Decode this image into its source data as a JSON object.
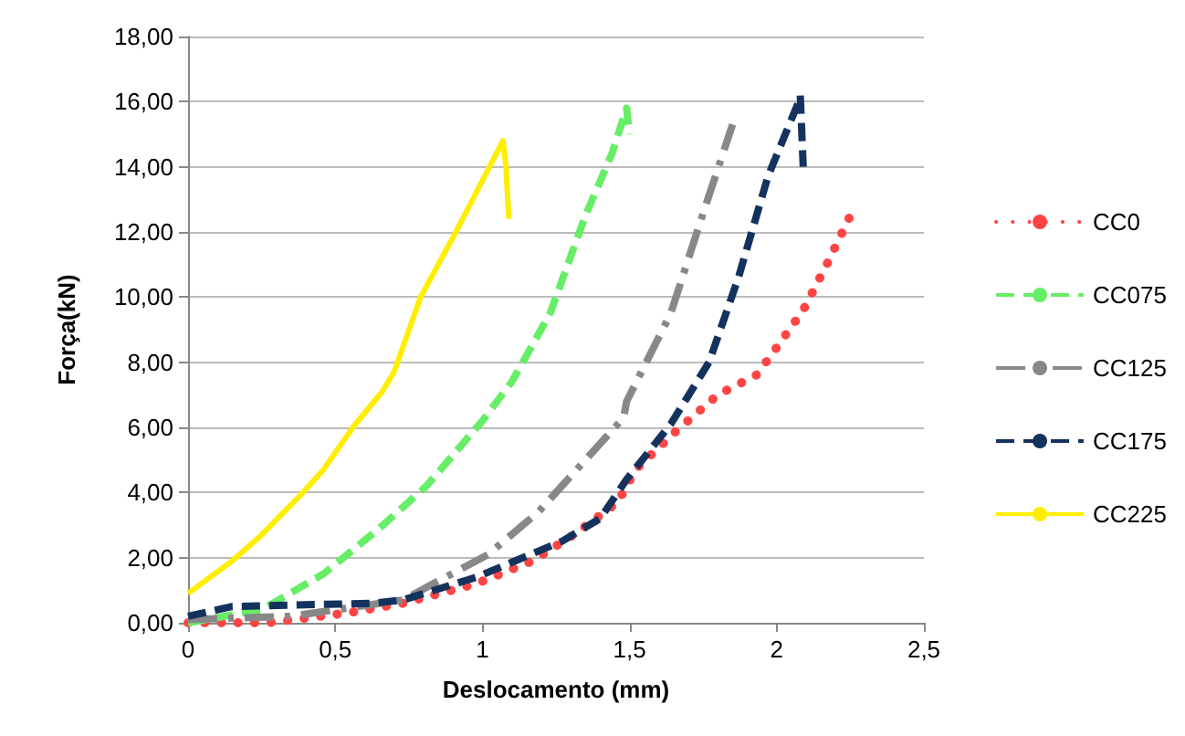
{
  "chart_data": {
    "type": "line",
    "xlabel": "Deslocamento (mm)",
    "ylabel": "Força(kN)",
    "xlim": [
      0,
      2.5
    ],
    "xticks": [
      {
        "value": 0,
        "label": "0"
      },
      {
        "value": 0.5,
        "label": "0,5"
      },
      {
        "value": 1,
        "label": "1"
      },
      {
        "value": 1.5,
        "label": "1,5"
      },
      {
        "value": 2,
        "label": "2"
      },
      {
        "value": 2.5,
        "label": "2,5"
      }
    ],
    "ylim": [
      0,
      18
    ],
    "yticks": [
      {
        "value": 0,
        "label": "0,00"
      },
      {
        "value": 2,
        "label": "2,00"
      },
      {
        "value": 4,
        "label": "4,00"
      },
      {
        "value": 6,
        "label": "6,00"
      },
      {
        "value": 8,
        "label": "8,00"
      },
      {
        "value": 10,
        "label": "10,00"
      },
      {
        "value": 12,
        "label": "12,00"
      },
      {
        "value": 14,
        "label": "14,00"
      },
      {
        "value": 16,
        "label": "16,00"
      },
      {
        "value": 18,
        "label": "18,00"
      }
    ],
    "grid": "y",
    "legend": "right",
    "marker": "none",
    "series": [
      {
        "name": "CC0",
        "color": "#ff4444",
        "line_style": "dotted",
        "x": [
          0,
          0.27,
          0.54,
          0.73,
          0.98,
          1.17,
          1.31,
          1.46,
          1.52,
          1.66,
          1.8,
          1.93,
          1.98,
          2.09,
          2.17,
          2.25
        ],
        "values": [
          0,
          0,
          0.3,
          0.6,
          1.2,
          1.9,
          2.7,
          3.7,
          4.7,
          5.9,
          7,
          7.6,
          8.2,
          9.6,
          11,
          12.5
        ]
      },
      {
        "name": "CC075",
        "color": "#66ee66",
        "line_style": "dashed",
        "x": [
          0,
          0.25,
          0.46,
          0.65,
          0.81,
          1,
          1.1,
          1.23,
          1.35,
          1.44,
          1.49,
          1.5
        ],
        "values": [
          0,
          0.4,
          1.5,
          2.9,
          4.2,
          6.2,
          7.4,
          9.5,
          12.5,
          14.4,
          15.8,
          15
        ]
      },
      {
        "name": "CC125",
        "color": "#888888",
        "line_style": "dashdot",
        "x": [
          0,
          0.35,
          0.73,
          1.02,
          1.19,
          1.48,
          1.49,
          1.64,
          1.74,
          1.85
        ],
        "values": [
          0.1,
          0.2,
          0.7,
          2.1,
          3.4,
          6.3,
          6.8,
          9.5,
          12.3,
          15.3
        ]
      },
      {
        "name": "CC175",
        "color": "#14325e",
        "line_style": "dashed",
        "x": [
          0,
          0.15,
          0.63,
          0.73,
          0.98,
          1.27,
          1.4,
          1.49,
          1.64,
          1.77,
          1.87,
          1.97,
          2.07,
          2.08,
          2.09
        ],
        "values": [
          0.2,
          0.5,
          0.6,
          0.7,
          1.4,
          2.5,
          3.2,
          4.4,
          6.1,
          8,
          10.6,
          13.7,
          15.9,
          16.2,
          14
        ]
      },
      {
        "name": "CC225",
        "color": "#ffee00",
        "line_style": "solid",
        "x": [
          0,
          0.15,
          0.25,
          0.38,
          0.46,
          0.56,
          0.66,
          0.7,
          0.79,
          0.91,
          1.07,
          1.08,
          1.09
        ],
        "values": [
          0.9,
          1.9,
          2.7,
          3.9,
          4.7,
          6,
          7.1,
          7.7,
          10,
          12,
          14.8,
          14,
          12.4
        ]
      }
    ]
  }
}
